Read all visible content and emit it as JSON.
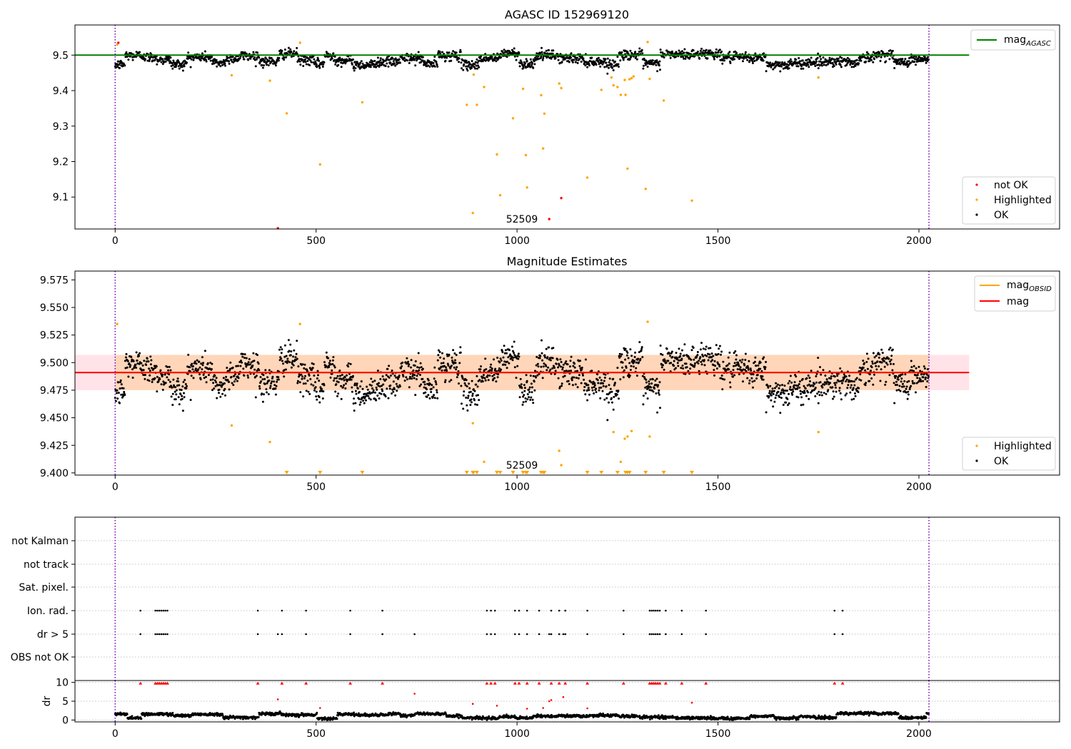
{
  "figure_title": "",
  "chart_data": [
    {
      "type": "scatter",
      "title": "AGASC ID 152969120",
      "xlim": [
        -100,
        2350
      ],
      "ylim": [
        9.01,
        9.585
      ],
      "xticks": [
        0,
        500,
        1000,
        1500,
        2000
      ],
      "yticks": [
        9.1,
        9.2,
        9.3,
        9.4,
        9.5
      ],
      "ytick_labels": [
        "9.1",
        "9.2",
        "9.3",
        "9.4",
        "9.5"
      ],
      "obs_boundaries": [
        0,
        2025
      ],
      "obsid_label": {
        "text": "52509",
        "x": 1012,
        "y": 9.03
      },
      "reference_lines": [
        {
          "name": "mag_AGASC",
          "y": 9.5,
          "x": [
            -100,
            2125
          ],
          "color": "#008000"
        }
      ],
      "ok_series": {
        "name": "OK",
        "color": "#000000",
        "n": 2025,
        "center": 9.49,
        "spread": 0.03
      },
      "highlighted": {
        "name": "Highlighted",
        "color": "#ffa500",
        "x": [
          5,
          290,
          385,
          427,
          460,
          510,
          615,
          875,
          890,
          892,
          900,
          918,
          950,
          958,
          990,
          1015,
          1022,
          1025,
          1060,
          1065,
          1068,
          1105,
          1110,
          1175,
          1210,
          1235,
          1240,
          1250,
          1258,
          1268,
          1270,
          1275,
          1280,
          1285,
          1290,
          1320,
          1325,
          1330,
          1365,
          1435,
          1750
        ],
        "y": [
          9.53,
          9.443,
          9.428,
          9.336,
          9.535,
          9.192,
          9.367,
          9.36,
          9.055,
          9.445,
          9.36,
          9.41,
          9.22,
          9.105,
          9.322,
          9.405,
          9.218,
          9.127,
          9.387,
          9.237,
          9.335,
          9.42,
          9.407,
          9.155,
          9.402,
          9.437,
          9.415,
          9.41,
          9.388,
          9.43,
          9.388,
          9.18,
          9.432,
          9.435,
          9.44,
          9.123,
          9.537,
          9.433,
          9.372,
          9.09,
          9.437
        ]
      },
      "not_ok": {
        "name": "not OK",
        "color": "#ff0000",
        "x": [
          8,
          405,
          1080,
          1110
        ],
        "y": [
          9.535,
          9.012,
          9.038,
          9.097
        ]
      },
      "legends": [
        {
          "position": "upper-right",
          "entries": [
            "mag",
            "AGASC"
          ]
        },
        {
          "position": "lower-right",
          "entries": [
            "not OK",
            "Highlighted",
            "OK"
          ]
        }
      ]
    },
    {
      "type": "scatter",
      "title": "Magnitude Estimates",
      "xlim": [
        -100,
        2350
      ],
      "ylim": [
        9.398,
        9.583
      ],
      "xticks": [
        0,
        500,
        1000,
        1500,
        2000
      ],
      "yticks": [
        9.4,
        9.425,
        9.45,
        9.475,
        9.5,
        9.525,
        9.55,
        9.575
      ],
      "ytick_labels": [
        "9.400",
        "9.425",
        "9.450",
        "9.475",
        "9.500",
        "9.525",
        "9.550",
        "9.575"
      ],
      "obs_boundaries": [
        0,
        2025
      ],
      "obsid_label": {
        "text": "52509",
        "x": 1012,
        "y": 9.403
      },
      "reference_lines": [
        {
          "name": "mag_OBSID",
          "y": 9.491,
          "x": [
            0,
            2025
          ],
          "color": "#ffa500"
        },
        {
          "name": "mag",
          "y": 9.491,
          "x": [
            -100,
            2125
          ],
          "color": "#ff0000"
        }
      ],
      "bands": [
        {
          "y": [
            9.475,
            9.507
          ],
          "x": [
            -100,
            2125
          ],
          "color": "#ffc0cb"
        },
        {
          "y": [
            9.475,
            9.507
          ],
          "x": [
            0,
            2025
          ],
          "color": "#ffa500"
        }
      ],
      "ok_series": {
        "name": "OK",
        "color": "#000000",
        "n": 2025,
        "center": 9.49,
        "spread": 0.03
      },
      "highlighted": {
        "name": "Highlighted",
        "color": "#ffa500",
        "x": [
          5,
          290,
          385,
          460,
          890,
          918,
          1110,
          1105,
          1240,
          1258,
          1268,
          1275,
          1285,
          1325,
          1330,
          1750
        ],
        "y": [
          9.535,
          9.443,
          9.428,
          9.535,
          9.445,
          9.41,
          9.407,
          9.42,
          9.437,
          9.41,
          9.431,
          9.433,
          9.438,
          9.537,
          9.433,
          9.437
        ]
      },
      "clipped_low": {
        "name": "Highlighted (below axis)",
        "color": "#ffa500",
        "x": [
          427,
          510,
          615,
          875,
          890,
          892,
          900,
          950,
          958,
          990,
          1015,
          1022,
          1025,
          1060,
          1065,
          1068,
          1175,
          1210,
          1250,
          1270,
          1275,
          1280,
          1320,
          1365,
          1435
        ]
      },
      "legends": [
        {
          "position": "upper-right",
          "entries": [
            "mag",
            "OBSID",
            "mag"
          ]
        },
        {
          "position": "lower-right",
          "entries": [
            "Highlighted",
            "OK"
          ]
        }
      ]
    },
    {
      "type": "scatter",
      "title": "",
      "xlim": [
        -100,
        2350
      ],
      "categories": [
        "not Kalman",
        "not track",
        "Sat. pixel.",
        "Ion. rad.",
        "dr > 5",
        "OBS not OK"
      ],
      "obs_boundaries": [
        0,
        2025
      ],
      "flags": {
        "Ion. rad.": [
          63,
          100,
          105,
          110,
          115,
          120,
          125,
          130,
          355,
          415,
          475,
          585,
          665,
          925,
          935,
          945,
          995,
          1005,
          1025,
          1055,
          1085,
          1105,
          1120,
          1175,
          1265,
          1330,
          1335,
          1340,
          1345,
          1350,
          1355,
          1370,
          1410,
          1470,
          1790,
          1810
        ],
        "dr > 5": [
          63,
          100,
          105,
          110,
          115,
          120,
          125,
          130,
          355,
          405,
          415,
          475,
          585,
          665,
          745,
          925,
          935,
          945,
          995,
          1005,
          1025,
          1055,
          1080,
          1085,
          1105,
          1115,
          1120,
          1175,
          1265,
          1330,
          1335,
          1340,
          1345,
          1350,
          1355,
          1370,
          1410,
          1470,
          1790,
          1810
        ]
      }
    },
    {
      "type": "scatter",
      "title": "",
      "ylabel": "dr",
      "xlim": [
        -100,
        2350
      ],
      "ylim": [
        -0.5,
        10.5
      ],
      "xticks": [
        0,
        500,
        1000,
        1500,
        2000
      ],
      "yticks": [
        0,
        5,
        10
      ],
      "ytick_labels": [
        "0",
        "5",
        "10"
      ],
      "obs_boundaries": [
        0,
        2025
      ],
      "dr_clipped_top": [
        63,
        100,
        105,
        110,
        115,
        120,
        125,
        130,
        355,
        415,
        475,
        585,
        665,
        925,
        935,
        945,
        995,
        1005,
        1025,
        1055,
        1085,
        1105,
        1120,
        1175,
        1265,
        1330,
        1335,
        1340,
        1345,
        1350,
        1355,
        1370,
        1410,
        1470,
        1790,
        1810
      ],
      "dr_outliers": {
        "x": [
          405,
          510,
          745,
          890,
          950,
          1025,
          1065,
          1080,
          1085,
          1115,
          1175,
          1435
        ],
        "y": [
          5.5,
          3.2,
          7.0,
          4.3,
          3.8,
          3.0,
          3.2,
          5.0,
          5.3,
          6.1,
          3.1,
          4.6
        ]
      },
      "ok_series": {
        "name": "OK",
        "color": "#000000",
        "n": 2025,
        "center": 0.8,
        "spread": 0.6
      }
    }
  ]
}
